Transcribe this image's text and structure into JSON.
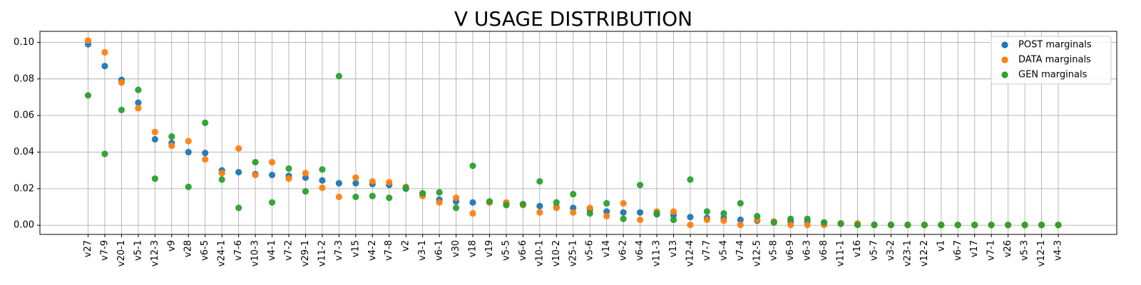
{
  "chart_data": {
    "type": "scatter",
    "title": "V USAGE DISTRIBUTION",
    "xlabel": "",
    "ylabel": "",
    "ylim": [
      -0.005,
      0.106
    ],
    "yticks": [
      "0.00",
      "0.02",
      "0.04",
      "0.06",
      "0.08",
      "0.10"
    ],
    "ytick_values": [
      0.0,
      0.02,
      0.04,
      0.06,
      0.08,
      0.1
    ],
    "grid": true,
    "legend_position": "top-right",
    "categories": [
      "v27",
      "v7-9",
      "v20-1",
      "v5-1",
      "v12-3",
      "v9",
      "v28",
      "v6-5",
      "v24-1",
      "v7-6",
      "v10-3",
      "v4-1",
      "v7-2",
      "v29-1",
      "v11-2",
      "v7-3",
      "v15",
      "v4-2",
      "v7-8",
      "v2",
      "v3-1",
      "v6-1",
      "v30",
      "v18",
      "v19",
      "v5-5",
      "v6-6",
      "v10-1",
      "v10-2",
      "v25-1",
      "v5-6",
      "v14",
      "v6-2",
      "v6-4",
      "v11-3",
      "v13",
      "v12-4",
      "v7-7",
      "v5-4",
      "v7-4",
      "v12-5",
      "v5-8",
      "v6-9",
      "v6-3",
      "v6-8",
      "v11-1",
      "v16",
      "v5-7",
      "v3-2",
      "v23-1",
      "v12-2",
      "v1",
      "v6-7",
      "v17",
      "v7-1",
      "v26",
      "v5-3",
      "v12-1",
      "v4-3"
    ],
    "series": [
      {
        "name": "POST marginals",
        "color": "#1f77b4",
        "values": [
          0.099,
          0.087,
          0.0795,
          0.067,
          0.047,
          0.045,
          0.04,
          0.0395,
          0.03,
          0.029,
          0.028,
          0.0275,
          0.027,
          0.026,
          0.0245,
          0.023,
          0.023,
          0.0225,
          0.022,
          0.02,
          0.017,
          0.014,
          0.013,
          0.0125,
          0.0125,
          0.012,
          0.0115,
          0.0105,
          0.01,
          0.0095,
          0.0085,
          0.0075,
          0.007,
          0.007,
          0.006,
          0.0055,
          0.0045,
          0.004,
          0.004,
          0.003,
          0.0025,
          0.002,
          0.002,
          0.002,
          0.0015,
          0.0008,
          0.0005,
          0.0003,
          0.0003,
          0.0002,
          0.0002,
          0.0002,
          0.0001,
          0.0001,
          0.0001,
          0.0001,
          0.0001,
          0.0001,
          0.0001
        ]
      },
      {
        "name": "DATA marginals",
        "color": "#ff7f0e",
        "values": [
          0.101,
          0.0945,
          0.078,
          0.064,
          0.051,
          0.0435,
          0.046,
          0.036,
          0.0285,
          0.042,
          0.0275,
          0.0345,
          0.0255,
          0.0285,
          0.0205,
          0.0155,
          0.026,
          0.024,
          0.0235,
          0.021,
          0.016,
          0.0125,
          0.015,
          0.0065,
          0.0125,
          0.0125,
          0.011,
          0.007,
          0.0095,
          0.007,
          0.0095,
          0.005,
          0.012,
          0.003,
          0.0075,
          0.0075,
          0.0002,
          0.003,
          0.0025,
          0.0002,
          0.003,
          0.002,
          0.0002,
          0.0002,
          0.0002,
          0.001,
          0.001,
          0.0001,
          0.0001,
          0.0001,
          0.0001,
          0.0001,
          0.0001,
          0.0001,
          0.0001,
          0.0001,
          0.0001,
          0.0001,
          0.0001
        ]
      },
      {
        "name": "GEN marginals",
        "color": "#2ca02c",
        "values": [
          0.071,
          0.039,
          0.063,
          0.074,
          0.0255,
          0.0485,
          0.021,
          0.056,
          0.025,
          0.0095,
          0.0345,
          0.0125,
          0.031,
          0.0185,
          0.0305,
          0.0815,
          0.0155,
          0.016,
          0.015,
          0.0205,
          0.0175,
          0.018,
          0.0095,
          0.0325,
          0.013,
          0.011,
          0.0115,
          0.024,
          0.0125,
          0.017,
          0.0065,
          0.012,
          0.0035,
          0.022,
          0.0065,
          0.003,
          0.025,
          0.0075,
          0.0065,
          0.012,
          0.005,
          0.0015,
          0.0035,
          0.0035,
          0.0015,
          0.001,
          0.0002,
          0.0002,
          0.0002,
          0.0002,
          0.0002,
          0.0002,
          0.0002,
          0.0002,
          0.0002,
          0.0002,
          0.0002,
          0.0002,
          0.0002
        ]
      }
    ]
  }
}
